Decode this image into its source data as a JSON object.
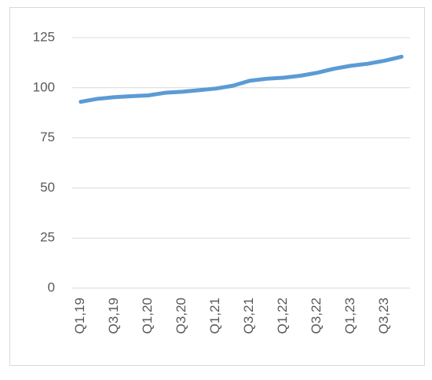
{
  "chart_data": {
    "type": "line",
    "categories": [
      "Q1,19",
      null,
      "Q3,19",
      null,
      "Q1,20",
      null,
      "Q3,20",
      null,
      "Q1,21",
      null,
      "Q3,21",
      null,
      "Q1,22",
      null,
      "Q3,22",
      null,
      "Q1,23",
      null,
      "Q3,23",
      null
    ],
    "series": [
      {
        "color": "#5b9bd5",
        "values": [
          93,
          94.5,
          95.3,
          95.8,
          96.2,
          97.5,
          98,
          98.8,
          99.6,
          101,
          103.5,
          104.5,
          105,
          106,
          107.5,
          109.5,
          111,
          112,
          113.5,
          115.5
        ]
      }
    ],
    "ylim": [
      0,
      125
    ],
    "yticks": [
      0,
      25,
      50,
      75,
      100,
      125
    ],
    "grid": true
  }
}
